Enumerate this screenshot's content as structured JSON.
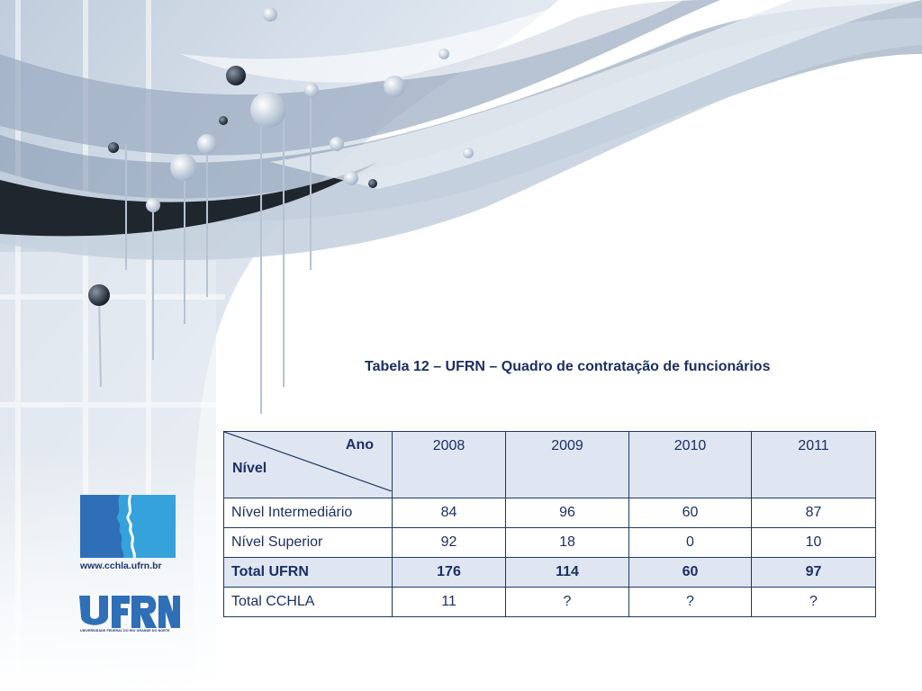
{
  "slide": {
    "title": "Tabela 12 – UFRN – Quadro de contratação de funcionários"
  },
  "table": {
    "corner": {
      "top_right": "Ano",
      "bottom_left": "Nível"
    },
    "years": [
      "2008",
      "2009",
      "2010",
      "2011"
    ],
    "rows": [
      {
        "label": "Nível Intermediário",
        "values": [
          "84",
          "96",
          "60",
          "87"
        ]
      },
      {
        "label": "Nível Superior",
        "values": [
          "92",
          "18",
          "0",
          "10"
        ]
      },
      {
        "label": "Total UFRN",
        "values": [
          "176",
          "114",
          "60",
          "97"
        ]
      },
      {
        "label": "Total CCHLA",
        "values": [
          "11",
          "?",
          "?",
          "?"
        ]
      }
    ]
  },
  "logos": {
    "cchla_url": "www.cchla.ufrn.br",
    "ufrn_name": "UFRN",
    "ufrn_subtitle": "UNIVERSIDADE FEDERAL DO RIO GRANDE DO NORTE"
  },
  "colors": {
    "text": "#1b2f63",
    "header_fill": "#dfe6f2",
    "border": "#1f3864",
    "logo_blue": "#2e6fb7",
    "logo_cyan": "#35a2dc"
  }
}
